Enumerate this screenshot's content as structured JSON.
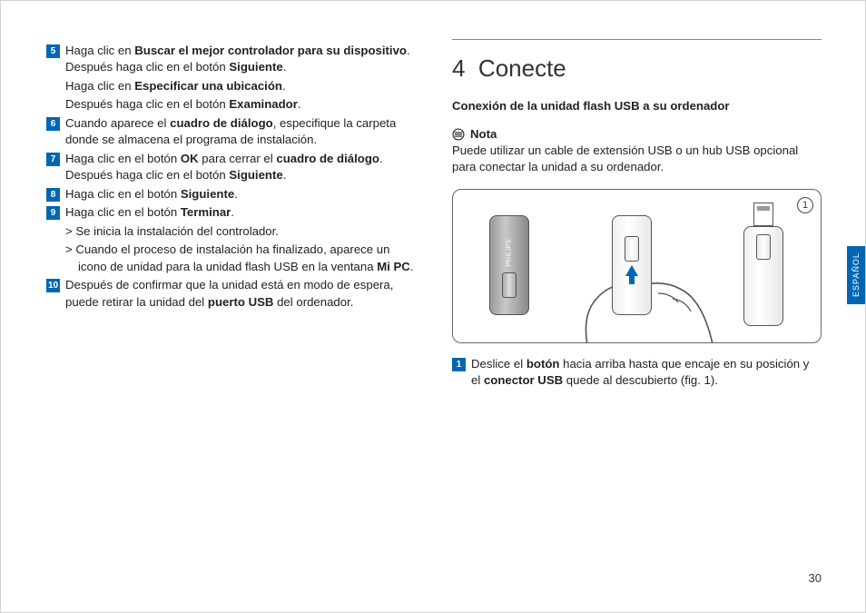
{
  "left": {
    "steps": [
      {
        "num": "5",
        "lines": [
          {
            "type": "main",
            "html": "Haga clic en <b>Buscar el mejor controlador para su dispositivo</b>. Después haga clic en el botón <b>Siguiente</b>."
          },
          {
            "type": "sub",
            "html": "Haga clic en <b>Especificar una ubicación</b>."
          },
          {
            "type": "sub",
            "html": "Después haga clic en el botón <b>Examinador</b>."
          }
        ]
      },
      {
        "num": "6",
        "lines": [
          {
            "type": "main",
            "html": "Cuando aparece el <b>cuadro de diálogo</b>, especifique la carpeta donde se almacena el programa de instalación."
          }
        ]
      },
      {
        "num": "7",
        "lines": [
          {
            "type": "main",
            "html": "Haga clic en el botón <b>OK</b> para cerrar el <b>cuadro de diálogo</b>. Después haga clic en el botón <b>Siguiente</b>."
          }
        ]
      },
      {
        "num": "8",
        "lines": [
          {
            "type": "main",
            "html": "Haga clic en el botón <b>Siguiente</b>."
          }
        ]
      },
      {
        "num": "9",
        "lines": [
          {
            "type": "main",
            "html": "Haga clic en el botón <b>Terminar</b>."
          },
          {
            "type": "subindent",
            "html": "> Se inicia la instalación del controlador."
          },
          {
            "type": "subindent",
            "html": "> Cuando el proceso de instalación ha finalizado, aparece un icono de unidad para la unidad flash USB en la ventana <b>Mi PC</b>."
          }
        ]
      },
      {
        "num": "10",
        "lines": [
          {
            "type": "main",
            "html": "Después de confirmar que la unidad está en modo de espera, puede retirar la unidad del <b>puerto USB</b> del ordenador."
          }
        ]
      }
    ]
  },
  "right": {
    "section_num": "4",
    "section_title": "Conecte",
    "subheading": "Conexión de la unidad flash USB a su ordenador",
    "note_label": "Nota",
    "note_text": "Puede utilizar un cable de extensión USB o un hub USB opcional para conectar la unidad a su ordenador.",
    "figure_label": "1",
    "usb_brand": "PHILIPS",
    "step": {
      "num": "1",
      "html": "Deslice el <b>botón</b> hacia arriba hasta que encaje en su posición y el <b>conector USB</b> quede al descubierto (fig. 1)."
    }
  },
  "lang_tab": "ESPAÑOL",
  "page_number": "30",
  "colors": {
    "accent": "#0066b3",
    "text": "#222222",
    "rule": "#888888"
  }
}
